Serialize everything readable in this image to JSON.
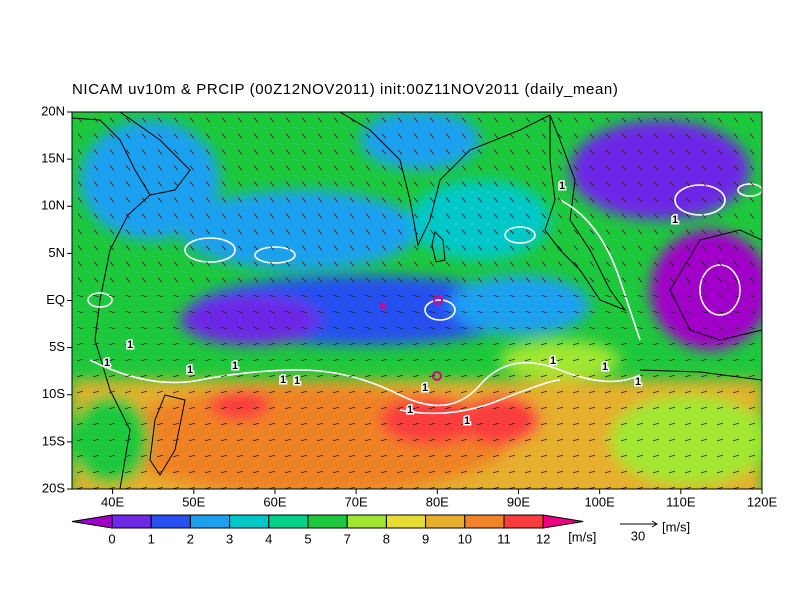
{
  "map": {
    "title": "NICAM uv10m & PRCIP (00Z12NOV2011) init:00Z11NOV2011 (daily_mean)",
    "xlim": [
      35,
      120
    ],
    "ylim": [
      -20,
      20
    ],
    "xticks": [
      {
        "value": 40,
        "label": "40E"
      },
      {
        "value": 50,
        "label": "50E"
      },
      {
        "value": 60,
        "label": "60E"
      },
      {
        "value": 70,
        "label": "70E"
      },
      {
        "value": 80,
        "label": "80E"
      },
      {
        "value": 90,
        "label": "90E"
      },
      {
        "value": 100,
        "label": "100E"
      },
      {
        "value": 110,
        "label": "110E"
      },
      {
        "value": 120,
        "label": "120E"
      }
    ],
    "yticks": [
      {
        "value": 20,
        "label": "20N"
      },
      {
        "value": 15,
        "label": "15N"
      },
      {
        "value": 10,
        "label": "10N"
      },
      {
        "value": 5,
        "label": "5N"
      },
      {
        "value": 0,
        "label": "EQ"
      },
      {
        "value": -5,
        "label": "5S"
      },
      {
        "value": -10,
        "label": "10S"
      },
      {
        "value": -15,
        "label": "15S"
      },
      {
        "value": -20,
        "label": "20S"
      }
    ],
    "colorbar": {
      "levels": [
        0,
        1,
        2,
        3,
        4,
        5,
        7,
        8,
        9,
        10,
        11,
        12
      ],
      "colors": [
        "#a000c8",
        "#6e28e6",
        "#2850f0",
        "#1ea0f0",
        "#00c8c8",
        "#00d28c",
        "#1ec83c",
        "#a0e632",
        "#e6dc32",
        "#e6af2d",
        "#f08228",
        "#fa3c3c",
        "#f00082"
      ],
      "unit": "[m/s]"
    },
    "reference_vector": {
      "value": 30,
      "unit": "[m/s]"
    },
    "contour_label": "1"
  }
}
